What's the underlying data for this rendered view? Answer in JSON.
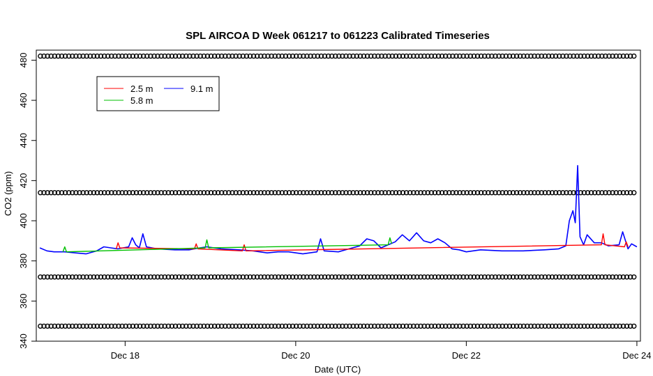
{
  "chart_data": {
    "type": "line",
    "title": "SPL AIRCOA D  Week 061217 to 061223  Calibrated Timeseries",
    "xlabel": "Date (UTC)",
    "ylabel": "CO2 (ppm)",
    "xlim": [
      "2006-12-16T23:00",
      "2006-12-24T01:00"
    ],
    "ylim": [
      340,
      485
    ],
    "x_ticks": [
      {
        "value": "2006-12-18",
        "label": "Dec 18"
      },
      {
        "value": "2006-12-20",
        "label": "Dec 20"
      },
      {
        "value": "2006-12-22",
        "label": "Dec 22"
      },
      {
        "value": "2006-12-24",
        "label": "Dec 24"
      }
    ],
    "y_ticks": [
      {
        "value": 340,
        "label": "340"
      },
      {
        "value": 360,
        "label": "360"
      },
      {
        "value": 380,
        "label": "380"
      },
      {
        "value": 400,
        "label": "400"
      },
      {
        "value": 420,
        "label": "420"
      },
      {
        "value": 440,
        "label": "440"
      },
      {
        "value": 460,
        "label": "460"
      },
      {
        "value": 480,
        "label": "480"
      }
    ],
    "grid": false,
    "legend": {
      "placement": "top-left",
      "entries": [
        {
          "label": "2.5 m",
          "color": "#ff0000"
        },
        {
          "label": "5.8 m",
          "color": "#00c000"
        },
        {
          "label": "9.1 m",
          "color": "#0000ff"
        }
      ]
    },
    "calibration_levels": [
      347.5,
      372,
      414,
      482
    ],
    "calibration_range": [
      "2006-12-17T00:10",
      "2006-12-24T00:00"
    ],
    "calibration_spacing_hours": 1,
    "series": [
      {
        "name": "9.1 m",
        "color": "#0000ff",
        "points": [
          [
            "2006-12-17T00:00",
            386.5
          ],
          [
            "2006-12-17T02:00",
            385
          ],
          [
            "2006-12-17T04:00",
            384.5
          ],
          [
            "2006-12-17T07:00",
            384.5
          ],
          [
            "2006-12-17T10:00",
            384
          ],
          [
            "2006-12-17T13:00",
            383.5
          ],
          [
            "2006-12-17T16:00",
            385
          ],
          [
            "2006-12-17T18:00",
            387
          ],
          [
            "2006-12-17T20:00",
            386.5
          ],
          [
            "2006-12-17T22:00",
            386
          ],
          [
            "2006-12-18T01:00",
            387
          ],
          [
            "2006-12-18T02:00",
            391.5
          ],
          [
            "2006-12-18T03:00",
            388
          ],
          [
            "2006-12-18T04:00",
            386.5
          ],
          [
            "2006-12-18T05:00",
            393.5
          ],
          [
            "2006-12-18T06:00",
            387
          ],
          [
            "2006-12-18T09:00",
            386
          ],
          [
            "2006-12-18T14:00",
            385.5
          ],
          [
            "2006-12-18T18:00",
            385.5
          ],
          [
            "2006-12-18T21:00",
            386.5
          ],
          [
            "2006-12-18T23:00",
            387
          ],
          [
            "2006-12-19T03:00",
            386
          ],
          [
            "2006-12-19T08:00",
            385.5
          ],
          [
            "2006-12-19T12:00",
            385
          ],
          [
            "2006-12-19T16:00",
            384
          ],
          [
            "2006-12-19T19:00",
            384.5
          ],
          [
            "2006-12-19T22:00",
            384.5
          ],
          [
            "2006-12-20T02:00",
            383.5
          ],
          [
            "2006-12-20T06:00",
            384.5
          ],
          [
            "2006-12-20T07:00",
            391
          ],
          [
            "2006-12-20T08:00",
            385
          ],
          [
            "2006-12-20T12:00",
            384.5
          ],
          [
            "2006-12-20T15:00",
            386
          ],
          [
            "2006-12-20T18:00",
            387.5
          ],
          [
            "2006-12-20T20:00",
            391
          ],
          [
            "2006-12-20T22:00",
            390
          ],
          [
            "2006-12-21T00:00",
            386.5
          ],
          [
            "2006-12-21T02:00",
            388
          ],
          [
            "2006-12-21T04:00",
            389.5
          ],
          [
            "2006-12-21T06:00",
            393
          ],
          [
            "2006-12-21T08:00",
            390
          ],
          [
            "2006-12-21T10:00",
            394
          ],
          [
            "2006-12-21T12:00",
            390
          ],
          [
            "2006-12-21T14:00",
            389
          ],
          [
            "2006-12-21T16:00",
            391
          ],
          [
            "2006-12-21T18:00",
            389
          ],
          [
            "2006-12-21T20:00",
            386
          ],
          [
            "2006-12-21T22:00",
            385.5
          ],
          [
            "2006-12-22T00:00",
            384.5
          ],
          [
            "2006-12-22T04:00",
            385.5
          ],
          [
            "2006-12-22T10:00",
            385
          ],
          [
            "2006-12-22T16:00",
            385
          ],
          [
            "2006-12-22T22:00",
            385.5
          ],
          [
            "2006-12-23T02:00",
            386
          ],
          [
            "2006-12-23T04:00",
            387.5
          ],
          [
            "2006-12-23T05:00",
            400
          ],
          [
            "2006-12-23T06:00",
            405
          ],
          [
            "2006-12-23T06:40",
            399
          ],
          [
            "2006-12-23T07:20",
            427.5
          ],
          [
            "2006-12-23T08:00",
            392
          ],
          [
            "2006-12-23T09:00",
            388
          ],
          [
            "2006-12-23T10:00",
            393
          ],
          [
            "2006-12-23T12:00",
            389
          ],
          [
            "2006-12-23T14:00",
            389
          ],
          [
            "2006-12-23T16:00",
            387.5
          ],
          [
            "2006-12-23T19:00",
            388
          ],
          [
            "2006-12-23T20:00",
            394.5
          ],
          [
            "2006-12-23T21:30",
            386
          ],
          [
            "2006-12-23T22:30",
            388.5
          ],
          [
            "2006-12-24T00:00",
            387
          ]
        ]
      },
      {
        "name": "2.5 m",
        "color": "#ff0000",
        "points": [
          [
            "2006-12-17T21:30",
            386
          ],
          [
            "2006-12-17T22:00",
            389
          ],
          [
            "2006-12-17T22:30",
            386.5
          ],
          [
            "2006-12-18T19:30",
            386
          ],
          [
            "2006-12-18T20:00",
            388.5
          ],
          [
            "2006-12-18T20:30",
            386
          ],
          [
            "2006-12-19T09:00",
            385
          ],
          [
            "2006-12-19T09:30",
            388
          ],
          [
            "2006-12-19T10:00",
            385
          ],
          [
            "2006-12-23T14:00",
            388
          ],
          [
            "2006-12-23T14:30",
            393.5
          ],
          [
            "2006-12-23T15:00",
            388
          ],
          [
            "2006-12-23T20:30",
            387
          ],
          [
            "2006-12-23T21:00",
            389.5
          ],
          [
            "2006-12-23T21:30",
            387
          ]
        ]
      },
      {
        "name": "5.8 m",
        "color": "#00c000",
        "points": [
          [
            "2006-12-17T06:30",
            384.5
          ],
          [
            "2006-12-17T07:00",
            387
          ],
          [
            "2006-12-17T07:30",
            384.5
          ],
          [
            "2006-12-18T22:30",
            386.5
          ],
          [
            "2006-12-18T23:00",
            390.5
          ],
          [
            "2006-12-18T23:30",
            386.5
          ],
          [
            "2006-12-21T02:00",
            388
          ],
          [
            "2006-12-21T02:30",
            391.5
          ],
          [
            "2006-12-21T03:00",
            388.5
          ]
        ]
      }
    ]
  }
}
